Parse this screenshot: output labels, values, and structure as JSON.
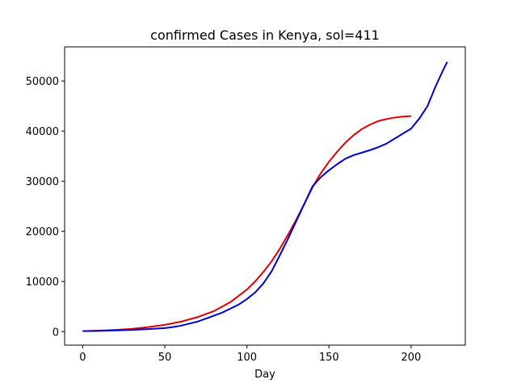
{
  "chart_data": {
    "type": "line",
    "title": "confirmed Cases in Kenya, sol=411",
    "xlabel": "Day",
    "ylabel": "",
    "xlim": [
      -11,
      233
    ],
    "ylim": [
      -2700,
      56800
    ],
    "xticks": [
      0,
      50,
      100,
      150,
      200
    ],
    "yticks": [
      0,
      10000,
      20000,
      30000,
      40000,
      50000
    ],
    "grid": false,
    "legend": "none",
    "series": [
      {
        "color": "#0000cc",
        "x": [
          0,
          10,
          20,
          30,
          40,
          50,
          55,
          60,
          65,
          70,
          75,
          80,
          85,
          90,
          95,
          100,
          105,
          110,
          115,
          120,
          125,
          130,
          135,
          140,
          145,
          150,
          155,
          160,
          165,
          170,
          175,
          180,
          185,
          190,
          195,
          200,
          205,
          210,
          215,
          220,
          222
        ],
        "y": [
          100,
          150,
          250,
          350,
          500,
          700,
          900,
          1200,
          1600,
          2000,
          2600,
          3200,
          3800,
          4600,
          5400,
          6500,
          7800,
          9600,
          12000,
          15200,
          18500,
          22000,
          25500,
          29000,
          30800,
          32200,
          33400,
          34500,
          35200,
          35700,
          36200,
          36800,
          37500,
          38500,
          39500,
          40500,
          42500,
          45000,
          49000,
          52500,
          53800
        ]
      },
      {
        "color": "#dd0000",
        "x": [
          0,
          10,
          20,
          30,
          40,
          50,
          60,
          70,
          80,
          90,
          100,
          105,
          110,
          115,
          120,
          125,
          130,
          135,
          140,
          145,
          150,
          155,
          160,
          165,
          170,
          175,
          180,
          185,
          190,
          195,
          200
        ],
        "y": [
          100,
          200,
          350,
          550,
          900,
          1350,
          2000,
          2900,
          4100,
          5900,
          8400,
          10000,
          11900,
          14000,
          16500,
          19300,
          22300,
          25500,
          28800,
          31600,
          33900,
          35900,
          37700,
          39200,
          40400,
          41300,
          42000,
          42400,
          42700,
          42900,
          43000
        ]
      }
    ]
  }
}
